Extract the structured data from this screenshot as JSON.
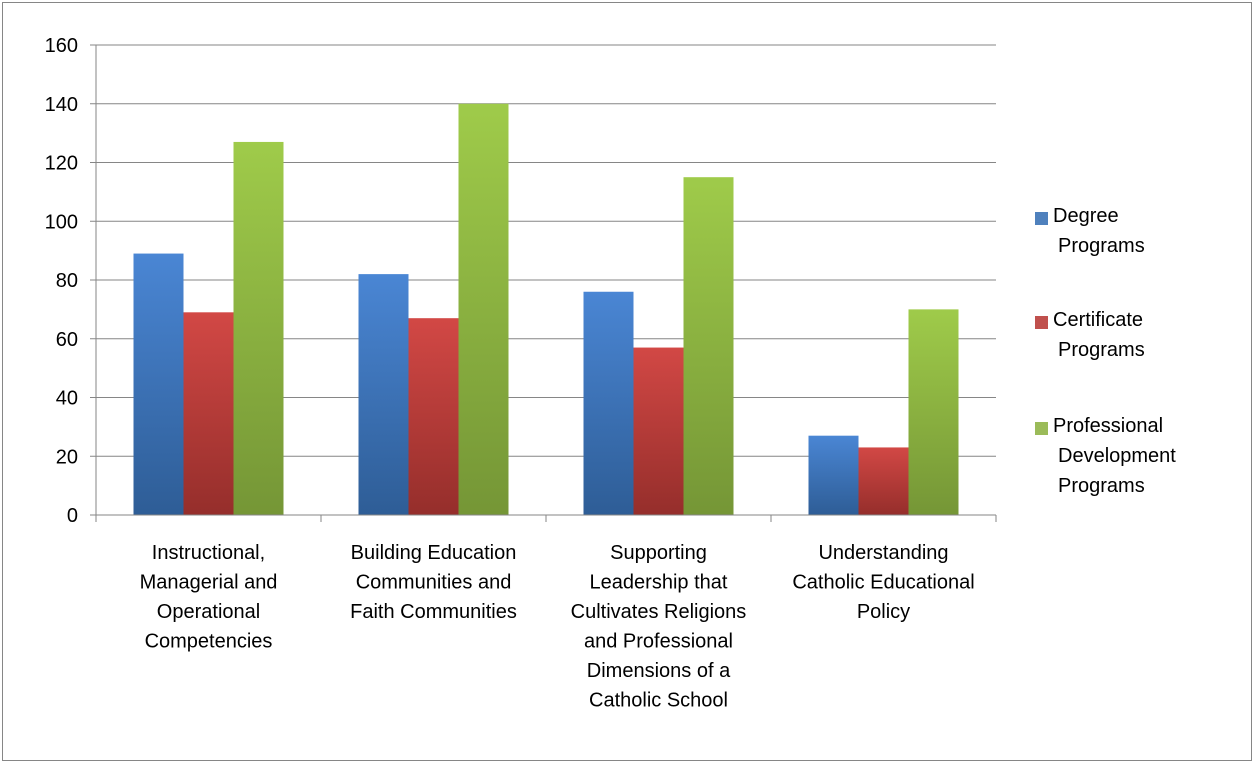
{
  "chart_data": {
    "type": "bar",
    "title": "",
    "xlabel": "",
    "ylabel": "",
    "ylim": [
      0,
      160
    ],
    "yticks": [
      0,
      20,
      40,
      60,
      80,
      100,
      120,
      140,
      160
    ],
    "grid": true,
    "legend_position": "right",
    "categories": [
      [
        "Instructional,",
        "Managerial and",
        "Operational",
        "Competencies"
      ],
      [
        "Building Education",
        "Communities and",
        "Faith Communities"
      ],
      [
        "Supporting",
        "Leadership that",
        "Cultivates Religions",
        "and Professional",
        "Dimensions of a",
        "Catholic School"
      ],
      [
        "Understanding",
        "Catholic Educational",
        "Policy"
      ]
    ],
    "series": [
      {
        "name": [
          "Degree",
          "Programs"
        ],
        "values": [
          89,
          82,
          76,
          27
        ],
        "color": "#4f81bd",
        "color_light": "#4a86d4",
        "color_dark": "#2e5d96"
      },
      {
        "name": [
          "Certificate",
          "Programs"
        ],
        "values": [
          69,
          67,
          57,
          23
        ],
        "color": "#c0504d",
        "color_light": "#d24845",
        "color_dark": "#952e2b"
      },
      {
        "name": [
          "Professional",
          "Development",
          "Programs"
        ],
        "values": [
          127,
          140,
          115,
          70
        ],
        "color": "#9bbb59",
        "color_light": "#9fcb4a",
        "color_dark": "#759636"
      }
    ]
  }
}
